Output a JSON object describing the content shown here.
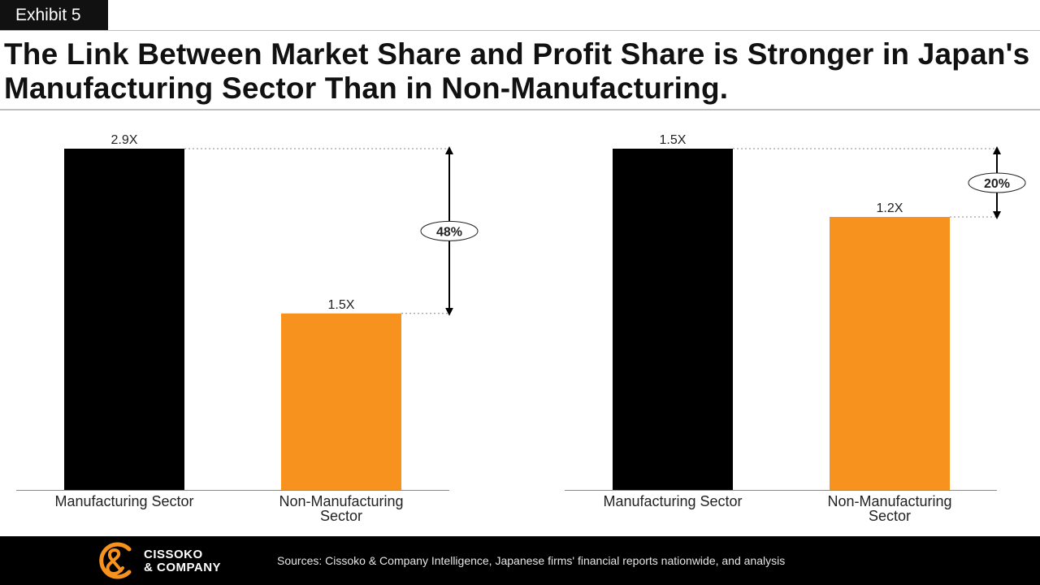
{
  "header": {
    "exhibit": "Exhibit 5",
    "title": "The Link Between Market Share and Profit Share is Stronger in Japan's Manufacturing Sector Than in Non-Manufacturing."
  },
  "chart_data": [
    {
      "type": "bar",
      "categories": [
        "Manufacturing Sector",
        "Non-Manufacturing Sector"
      ],
      "values": [
        2.9,
        1.5
      ],
      "data_labels": [
        "2.9X",
        "1.5X"
      ],
      "colors": [
        "#000000",
        "#f7921e"
      ],
      "difference_label": "48%",
      "ylim": [
        0,
        2.9
      ]
    },
    {
      "type": "bar",
      "categories": [
        "Manufacturing Sector",
        "Non-Manufacturing Sector"
      ],
      "values": [
        1.5,
        1.2
      ],
      "data_labels": [
        "1.5X",
        "1.2X"
      ],
      "colors": [
        "#000000",
        "#f7921e"
      ],
      "difference_label": "20%",
      "ylim": [
        0,
        1.5
      ]
    }
  ],
  "footer": {
    "logo_line1": "CISSOKO",
    "logo_line2": "& COMPANY",
    "logo_icon": "ampersand-c-logo-icon",
    "brand_color": "#f7921e",
    "sources": "Sources: Cissoko & Company Intelligence, Japanese firms' financial reports nationwide, and analysis"
  }
}
